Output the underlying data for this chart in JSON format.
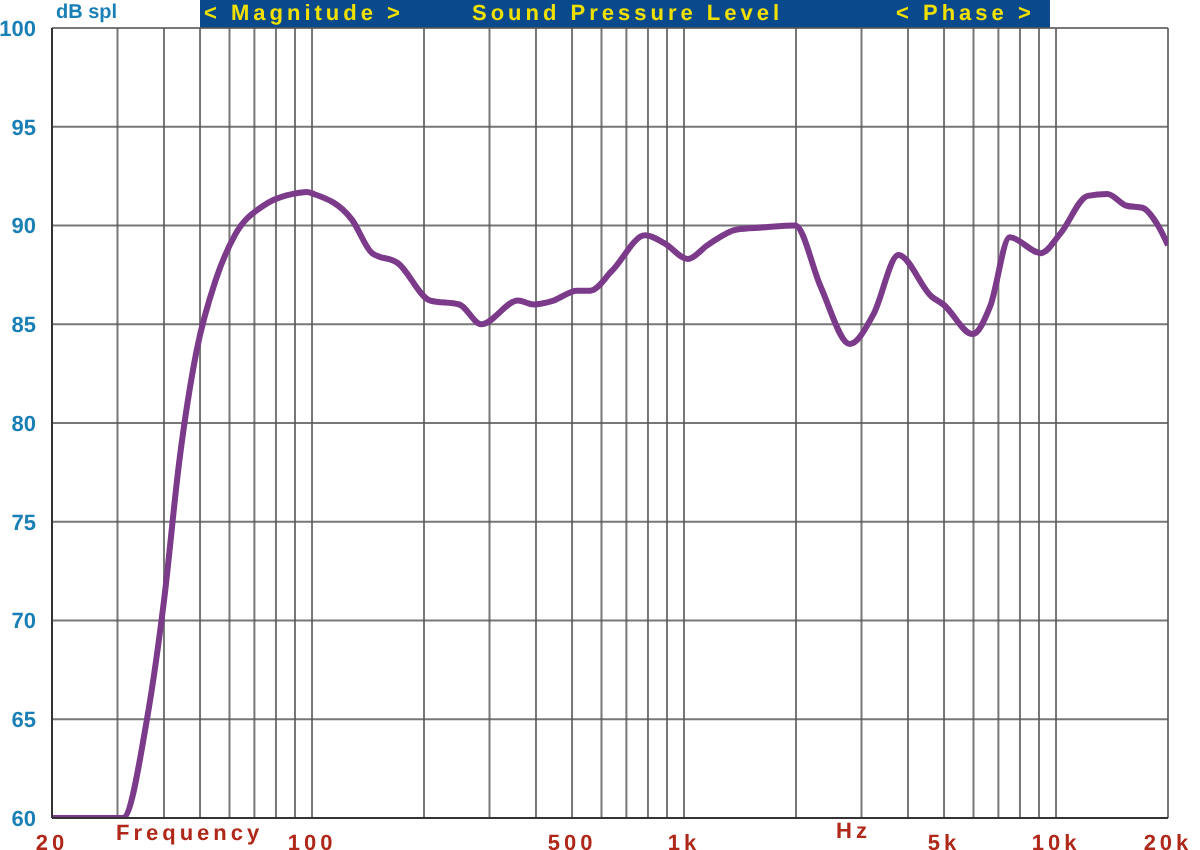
{
  "chart_data": {
    "type": "line",
    "title": "Sound Pressure Level",
    "ylabel": "dB spl",
    "xlabel": "Frequency",
    "annotations": [
      "< Magnitude >",
      "< Phase >",
      "Hz"
    ],
    "log": "x",
    "grid": true,
    "line_style": "solid",
    "xlim": [
      20,
      20000
    ],
    "ylim": [
      60,
      100
    ],
    "yticks": [
      60,
      65,
      70,
      75,
      80,
      85,
      90,
      95,
      100
    ],
    "xticks": [
      {
        "value": 20,
        "label": "20"
      },
      {
        "value": 30,
        "label": null
      },
      {
        "value": 40,
        "label": null
      },
      {
        "value": 50,
        "label": null
      },
      {
        "value": 60,
        "label": null
      },
      {
        "value": 70,
        "label": null
      },
      {
        "value": 80,
        "label": null
      },
      {
        "value": 90,
        "label": null
      },
      {
        "value": 100,
        "label": "100"
      },
      {
        "value": 200,
        "label": null
      },
      {
        "value": 300,
        "label": null
      },
      {
        "value": 400,
        "label": null
      },
      {
        "value": 500,
        "label": "500"
      },
      {
        "value": 600,
        "label": null
      },
      {
        "value": 700,
        "label": null
      },
      {
        "value": 800,
        "label": null
      },
      {
        "value": 900,
        "label": null
      },
      {
        "value": 1000,
        "label": "1k"
      },
      {
        "value": 2000,
        "label": null
      },
      {
        "value": 3000,
        "label": null
      },
      {
        "value": 4000,
        "label": null
      },
      {
        "value": 5000,
        "label": "5k"
      },
      {
        "value": 6000,
        "label": null
      },
      {
        "value": 7000,
        "label": null
      },
      {
        "value": 8000,
        "label": null
      },
      {
        "value": 9000,
        "label": null
      },
      {
        "value": 10000,
        "label": "10k"
      },
      {
        "value": 20000,
        "label": "20k"
      }
    ],
    "series": [
      {
        "color": "#7b3a8a",
        "x": [
          20,
          31,
          36,
          40,
          44,
          49,
          55,
          62,
          74,
          79,
          89,
          97,
          101,
          128,
          145,
          170,
          208,
          249,
          285,
          358,
          394,
          446,
          515,
          560,
          640,
          786,
          887,
          1024,
          1156,
          1387,
          1622,
          1990,
          2330,
          2790,
          3230,
          3770,
          4630,
          4980,
          5970,
          6650,
          7510,
          9110,
          10280,
          12170,
          13740,
          15490,
          17070,
          18800,
          20000
        ],
        "values": [
          60,
          60,
          65,
          71,
          78.1,
          83.7,
          87.2,
          89.5,
          91,
          91.3,
          91.6,
          91.7,
          91.6,
          90.3,
          88.6,
          88.1,
          86.2,
          86,
          85,
          86.2,
          86,
          86.2,
          86.7,
          86.7,
          87.7,
          89.5,
          89.1,
          88.3,
          89,
          89.8,
          89.9,
          90,
          86.9,
          84,
          85.5,
          88.5,
          86.4,
          86,
          84.5,
          85.9,
          89.4,
          88.6,
          89.6,
          91.5,
          91.6,
          91,
          90.9,
          90,
          89
        ]
      }
    ]
  }
}
